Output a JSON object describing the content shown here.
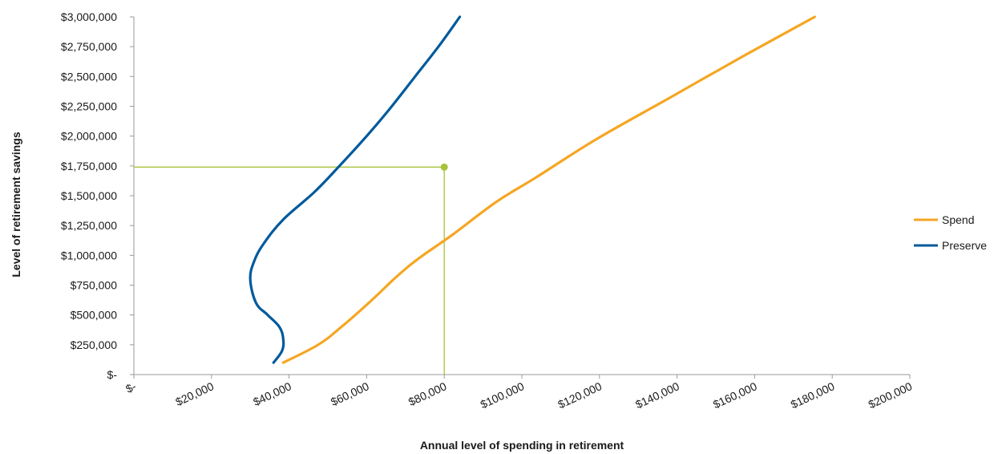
{
  "chart_data": {
    "type": "line",
    "title": "",
    "xlabel": "Annual level of spending in retirement",
    "ylabel": "Level of retirement savings",
    "xlim": [
      0,
      200000
    ],
    "ylim": [
      0,
      3000000
    ],
    "x_ticks": [
      0,
      20000,
      40000,
      60000,
      80000,
      100000,
      120000,
      140000,
      160000,
      180000,
      200000
    ],
    "x_tick_labels": [
      "$-",
      "$20,000",
      "$40,000",
      "$60,000",
      "$80,000",
      "$100,000",
      "$120,000",
      "$140,000",
      "$160,000",
      "$180,000",
      "$200,000"
    ],
    "y_ticks": [
      0,
      250000,
      500000,
      750000,
      1000000,
      1250000,
      1500000,
      1750000,
      2000000,
      2250000,
      2500000,
      2750000,
      3000000
    ],
    "y_tick_labels": [
      "$-",
      "$250,000",
      "$500,000",
      "$750,000",
      "$1,000,000",
      "$1,250,000",
      "$1,500,000",
      "$1,750,000",
      "$2,000,000",
      "$2,250,000",
      "$2,500,000",
      "$2,750,000",
      "$3,000,000"
    ],
    "grid": false,
    "legend_position": "right",
    "series": [
      {
        "name": "Spend",
        "color": "#F5A623",
        "points": [
          [
            38500,
            100000
          ],
          [
            47500,
            250000
          ],
          [
            53500,
            400000
          ],
          [
            60500,
            600000
          ],
          [
            67000,
            800000
          ],
          [
            70500,
            900000
          ],
          [
            74500,
            1000000
          ],
          [
            82000,
            1170000
          ],
          [
            93500,
            1450000
          ],
          [
            103500,
            1650000
          ],
          [
            119000,
            1970000
          ],
          [
            137500,
            2310000
          ],
          [
            156500,
            2660000
          ],
          [
            175500,
            3000000
          ]
        ]
      },
      {
        "name": "Preserve",
        "color": "#005A9C",
        "points": [
          [
            36000,
            100000
          ],
          [
            38200,
            200000
          ],
          [
            38500,
            300000
          ],
          [
            37500,
            400000
          ],
          [
            34500,
            500000
          ],
          [
            31500,
            600000
          ],
          [
            30000,
            800000
          ],
          [
            31000,
            950000
          ],
          [
            33500,
            1100000
          ],
          [
            38500,
            1300000
          ],
          [
            46500,
            1530000
          ],
          [
            53000,
            1750000
          ],
          [
            60000,
            2000000
          ],
          [
            65500,
            2210000
          ],
          [
            72500,
            2500000
          ],
          [
            78500,
            2750000
          ],
          [
            84000,
            3000000
          ]
        ]
      }
    ],
    "highlight": {
      "x": 80000,
      "y": 1740000,
      "color": "#A6C23A"
    },
    "axis_color": "#9a9a9a"
  }
}
